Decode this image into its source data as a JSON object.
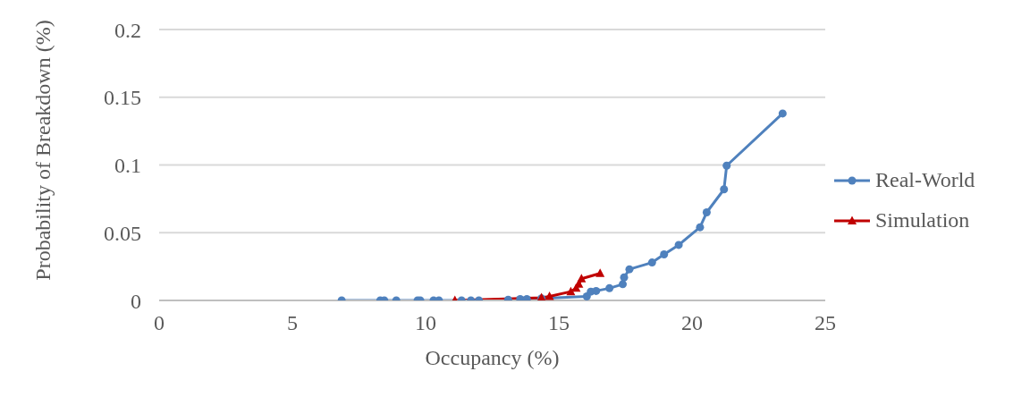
{
  "chart_data": {
    "type": "line",
    "xlabel": "Occupancy (%)",
    "ylabel": "Probability of Breakdown (%)",
    "xlim": [
      0,
      25
    ],
    "xticks": [
      0,
      5,
      10,
      15,
      20,
      25
    ],
    "ylim": [
      0,
      0.2
    ],
    "yticks": [
      0,
      0.05,
      0.1,
      0.15,
      0.2
    ],
    "grid": "y",
    "legend": "right",
    "line_style": "solid",
    "series": [
      {
        "name": "Real-World",
        "color": "#4f81bd",
        "marker": "circle",
        "x": [
          6.85,
          8.3,
          8.45,
          8.9,
          9.7,
          9.8,
          10.3,
          10.5,
          11.35,
          11.7,
          12.0,
          13.1,
          13.55,
          13.8,
          14.35,
          16.05,
          16.2,
          16.4,
          16.9,
          17.4,
          17.45,
          17.65,
          18.5,
          18.95,
          19.5,
          20.3,
          20.55,
          21.2,
          21.3,
          23.4
        ],
        "values": [
          0,
          0,
          0,
          0,
          0,
          0,
          0,
          0,
          0,
          0,
          0,
          0.0005,
          0.001,
          0.001,
          0.0015,
          0.003,
          0.0065,
          0.007,
          0.009,
          0.012,
          0.017,
          0.023,
          0.028,
          0.034,
          0.041,
          0.054,
          0.065,
          0.082,
          0.0995,
          0.138
        ]
      },
      {
        "name": "Simulation",
        "color": "#c00000",
        "marker": "triangle",
        "x": [
          11.1,
          14.35,
          14.65,
          15.45,
          15.65,
          15.75,
          15.85,
          16.55
        ],
        "values": [
          0,
          0.002,
          0.003,
          0.0065,
          0.009,
          0.012,
          0.016,
          0.02
        ]
      }
    ]
  }
}
